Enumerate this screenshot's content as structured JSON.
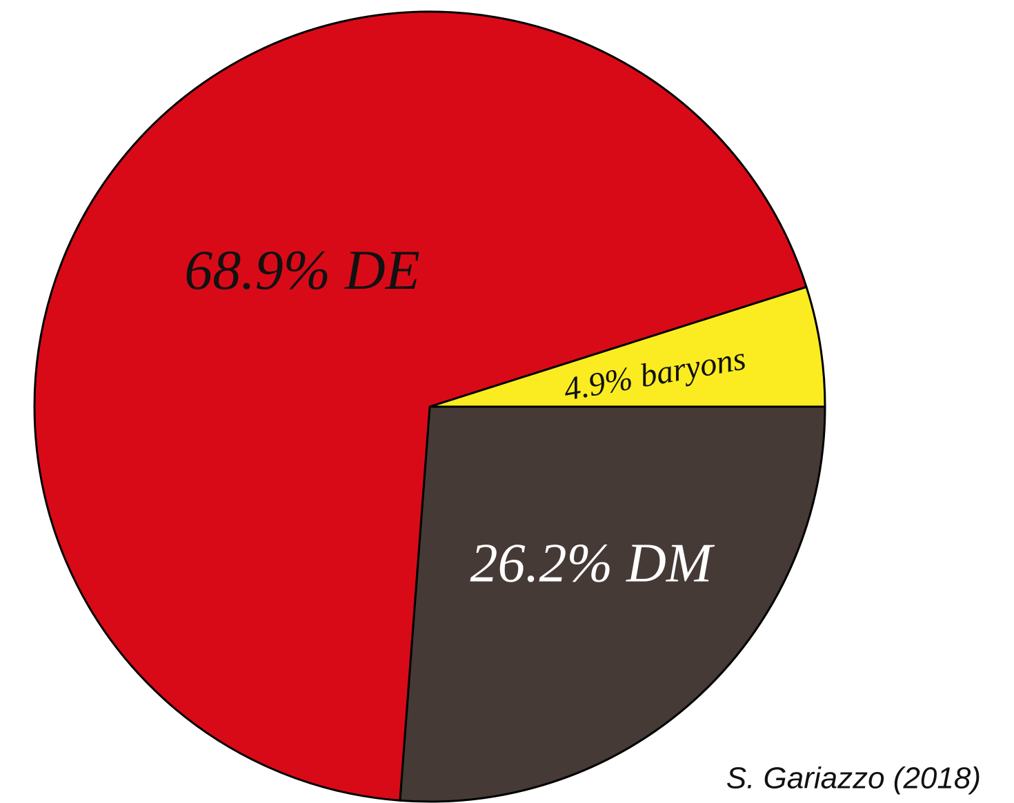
{
  "chart_data": {
    "type": "pie",
    "values": [
      26.2,
      68.9,
      4.9
    ],
    "value_labels": [
      "26.2% DM",
      "68.9% DE",
      "4.9% baryons"
    ],
    "colors": [
      "#453a35",
      "#d90a18",
      "#fbec21"
    ],
    "annotation": "S. Gariazzo (2018)"
  }
}
